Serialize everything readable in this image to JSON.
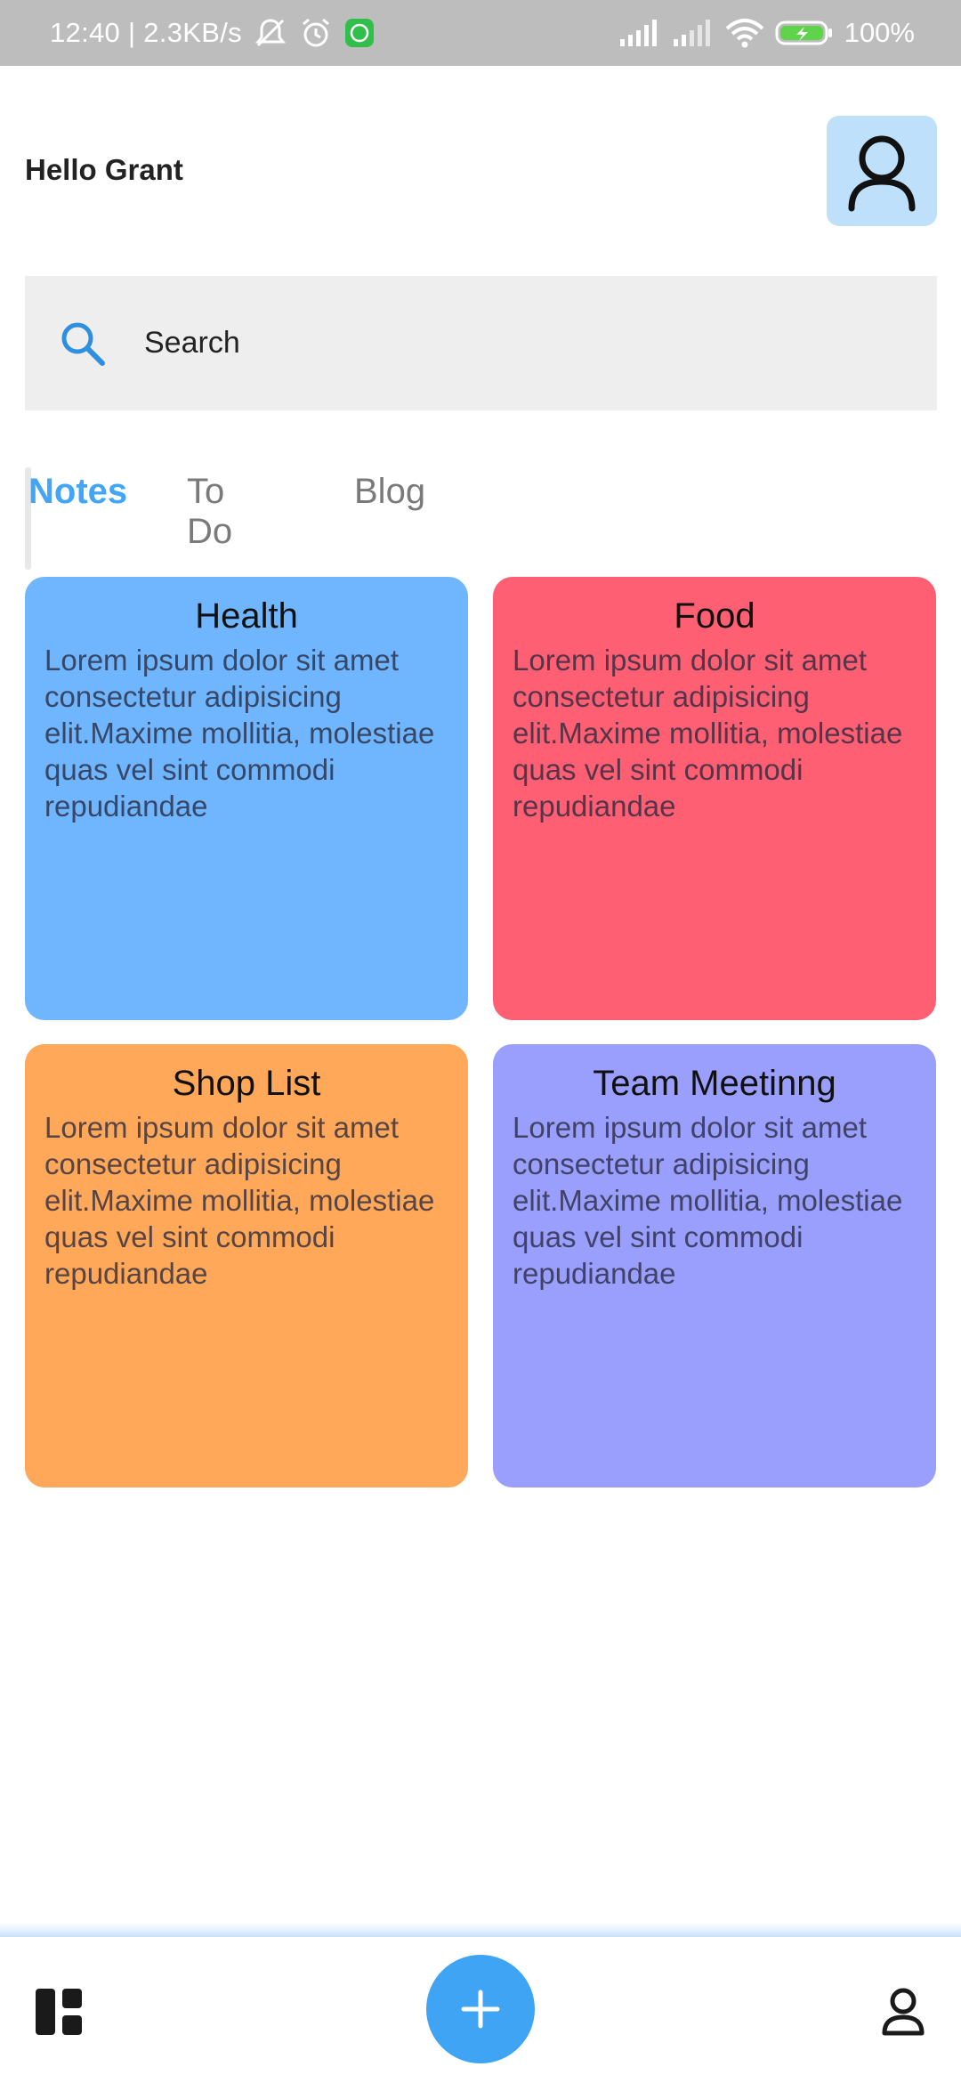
{
  "status_bar": {
    "time_speed": "12:40 | 2.3KB/s",
    "battery": "100%",
    "icons": [
      "muted-bell-icon",
      "alarm-icon",
      "whatsapp-icon",
      "signal-icon",
      "signal-icon",
      "wifi-icon",
      "battery-charging-icon"
    ]
  },
  "header": {
    "greeting": "Hello Grant",
    "avatar_icon": "person-icon"
  },
  "search": {
    "placeholder": "Search",
    "icon": "search-icon"
  },
  "tabs": [
    {
      "label": "Notes",
      "active": true
    },
    {
      "label": "To Do",
      "active": false
    },
    {
      "label": "Blog",
      "active": false
    }
  ],
  "cards": [
    {
      "title": "Health",
      "body": "Lorem ipsum dolor sit amet consectetur adipisicing elit.Maxime mollitia, molestiae quas vel sint commodi repudiandae",
      "color": "#6fb6fe"
    },
    {
      "title": "Food",
      "body": "Lorem ipsum dolor sit amet consectetur adipisicing elit.Maxime mollitia, molestiae quas vel sint commodi repudiandae",
      "color": "#ff5f73"
    },
    {
      "title": "Shop List",
      "body": "Lorem ipsum dolor sit amet consectetur adipisicing elit.Maxime mollitia, molestiae quas vel sint commodi repudiandae",
      "color": "#ffa85a"
    },
    {
      "title": "Team Meetinng",
      "body": "Lorem ipsum dolor sit amet consectetur adipisicing elit.Maxime mollitia, molestiae quas vel sint commodi repudiandae",
      "color": "#9a9ffd"
    }
  ],
  "bottom_nav": {
    "left_icon": "dashboard-icon",
    "center_icon": "plus-icon",
    "right_icon": "profile-icon"
  },
  "colors": {
    "accent": "#42a5f5",
    "fab": "#3ea4f3",
    "status_bar": "#bdbdbd",
    "search_bg": "#eeeeee",
    "avatar_bg": "#bfe0fb"
  }
}
